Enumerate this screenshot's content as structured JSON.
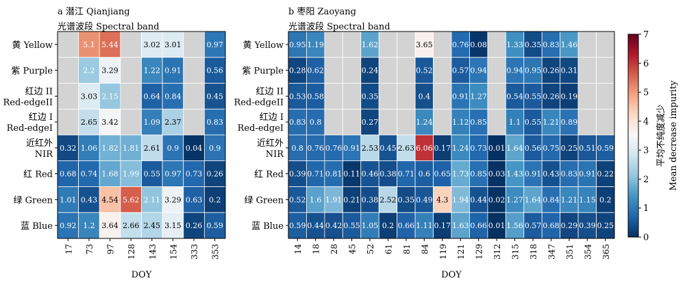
{
  "chart_data": [
    {
      "type": "heatmap",
      "panel_label": "a 潜江 Qianjiang",
      "subtitle": "光谱波段 Spectral band",
      "xlabel": "DOY",
      "x": [
        "17",
        "73",
        "97",
        "128",
        "143",
        "154",
        "333",
        "353"
      ],
      "y_labels": [
        [
          "黄 Yellow"
        ],
        [
          "紫 Purple"
        ],
        [
          "红边 II",
          "Red-edgeII"
        ],
        [
          "红边 I",
          "Red-edgeI"
        ],
        [
          "近红外",
          "NIR"
        ],
        [
          "红 Red"
        ],
        [
          "绿 Green"
        ],
        [
          "蓝 Blue"
        ]
      ],
      "values": [
        [
          null,
          5.1,
          5.44,
          null,
          3.02,
          3.01,
          null,
          0.97
        ],
        [
          null,
          2.2,
          3.29,
          null,
          1.22,
          0.91,
          null,
          0.56
        ],
        [
          null,
          3.03,
          2.15,
          null,
          0.64,
          0.84,
          null,
          0.45
        ],
        [
          null,
          2.65,
          3.42,
          null,
          1.09,
          2.37,
          null,
          0.83
        ],
        [
          0.32,
          1.06,
          1.82,
          1.81,
          2.61,
          0.9,
          0.04,
          0.9
        ],
        [
          0.68,
          0.74,
          1.68,
          1.99,
          0.55,
          0.97,
          0.73,
          0.26
        ],
        [
          1.01,
          0.43,
          4.54,
          5.62,
          2.11,
          3.29,
          0.63,
          0.2
        ],
        [
          0.92,
          1.2,
          3.64,
          2.66,
          2.45,
          3.15,
          0.26,
          0.59
        ]
      ]
    },
    {
      "type": "heatmap",
      "panel_label": "b 枣阳 Zaoyang",
      "subtitle": "光谱波段 Spectral band",
      "xlabel": "DOY",
      "x": [
        "14",
        "18",
        "28",
        "45",
        "52",
        "61",
        "81",
        "84",
        "119",
        "121",
        "129",
        "312",
        "315",
        "318",
        "347",
        "351",
        "354",
        "365"
      ],
      "y_labels": [
        [
          "黄 Yellow"
        ],
        [
          "紫 Purple"
        ],
        [
          "红边 II",
          "Red-edgeII"
        ],
        [
          "红边 I",
          "Red-edgeI"
        ],
        [
          "近红外",
          "NIR"
        ],
        [
          "红 Red"
        ],
        [
          "绿 Green"
        ],
        [
          "蓝 Blue"
        ]
      ],
      "values": [
        [
          0.95,
          1.19,
          null,
          null,
          1.62,
          null,
          null,
          3.65,
          null,
          0.76,
          0.08,
          null,
          1.33,
          0.35,
          0.83,
          1.46,
          null,
          null
        ],
        [
          0.28,
          0.62,
          null,
          null,
          0.24,
          null,
          null,
          0.52,
          null,
          0.57,
          0.94,
          null,
          0.94,
          0.95,
          0.26,
          0.31,
          null,
          null
        ],
        [
          0.53,
          0.58,
          null,
          null,
          0.35,
          null,
          null,
          0.4,
          null,
          0.91,
          1.27,
          null,
          0.54,
          0.55,
          0.26,
          0.19,
          null,
          null
        ],
        [
          0.83,
          0.8,
          null,
          null,
          0.27,
          null,
          null,
          1.24,
          null,
          1.12,
          0.85,
          null,
          1.1,
          0.55,
          1.21,
          0.89,
          null,
          null
        ],
        [
          0.8,
          0.76,
          0.76,
          0.91,
          2.53,
          0.45,
          2.63,
          6.06,
          0.17,
          1.24,
          0.73,
          0.01,
          1.64,
          0.56,
          0.75,
          0.25,
          0.51,
          0.59
        ],
        [
          0.39,
          0.71,
          0.81,
          0.11,
          0.46,
          0.38,
          0.71,
          0.6,
          0.65,
          1.73,
          0.85,
          0.03,
          1.43,
          0.91,
          0.43,
          0.83,
          0.91,
          0.22
        ],
        [
          0.52,
          1.6,
          1.91,
          0.21,
          0.38,
          2.52,
          0.35,
          0.49,
          4.3,
          1.94,
          0.44,
          0.02,
          1.27,
          1.64,
          0.84,
          1.21,
          1.15,
          0.2
        ],
        [
          0.59,
          0.44,
          0.42,
          0.55,
          1.05,
          0.2,
          0.66,
          1.11,
          0.17,
          1.63,
          0.66,
          0.01,
          1.56,
          0.57,
          0.68,
          0.29,
          0.39,
          0.25
        ]
      ]
    }
  ],
  "colorbar": {
    "label_cn": "平均不纯度减少",
    "label_en": "Mean decrease impurity",
    "ticks": [
      "0",
      "1",
      "2",
      "3",
      "4",
      "5",
      "6",
      "7"
    ],
    "range": [
      0,
      7
    ],
    "colormap": "RdBu_r",
    "missing_color": "#d3d3d3"
  }
}
